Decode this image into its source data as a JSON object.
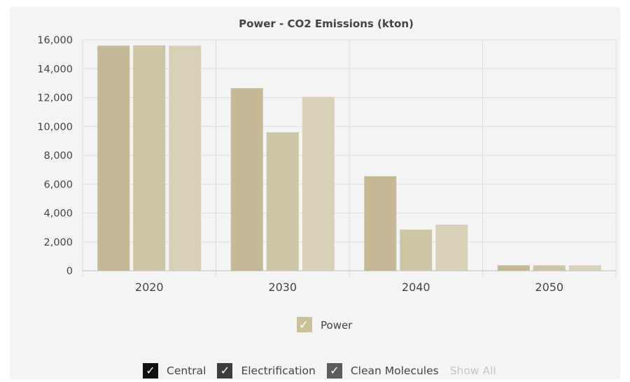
{
  "chart_data": {
    "type": "bar",
    "title": "Power - CO2 Emissions (kton)",
    "categories": [
      "2020",
      "2030",
      "2040",
      "2050"
    ],
    "ylim": [
      0,
      16000
    ],
    "yticks": [
      "0",
      "2,000",
      "4,000",
      "6,000",
      "8,000",
      "10,000",
      "12,000",
      "14,000",
      "16,000"
    ],
    "series": [
      {
        "name": "Central",
        "values": [
          15600,
          12650,
          6550,
          380
        ]
      },
      {
        "name": "Electrification",
        "values": [
          15620,
          9600,
          2850,
          370
        ]
      },
      {
        "name": "Clean Molecules",
        "values": [
          15600,
          12050,
          3200,
          380
        ]
      }
    ],
    "bar_colors": [
      "#c4b994",
      "#cdc5a3",
      "#d8d1b8"
    ],
    "legend": {
      "label": "Power",
      "color": "#c9bf98",
      "placement": "bottom"
    },
    "grid": true
  },
  "filters": {
    "items": [
      {
        "label": "Central",
        "color": "#111111"
      },
      {
        "label": "Electrification",
        "color": "#3c3c3c"
      },
      {
        "label": "Clean Molecules",
        "color": "#5c5c5c"
      }
    ],
    "show_all_label": "Show All"
  }
}
